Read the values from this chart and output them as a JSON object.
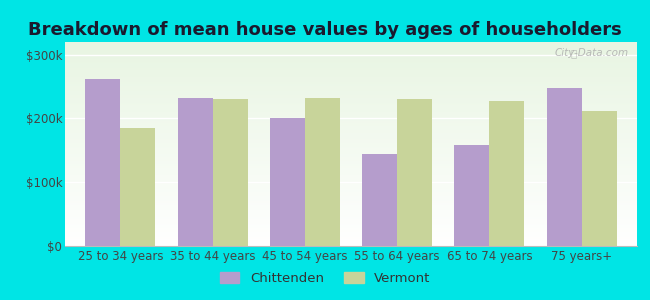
{
  "title": "Breakdown of mean house values by ages of householders",
  "categories": [
    "25 to 34 years",
    "35 to 44 years",
    "45 to 54 years",
    "55 to 64 years",
    "65 to 74 years",
    "75 years+"
  ],
  "chittenden": [
    262000,
    232000,
    200000,
    145000,
    158000,
    248000
  ],
  "vermont": [
    185000,
    230000,
    232000,
    230000,
    228000,
    212000
  ],
  "chittenden_color": "#b59dcc",
  "vermont_color": "#c8d49a",
  "background_color": "#00e5e5",
  "plot_bg_top": "#e8f5e2",
  "plot_bg_bottom": "#f5fff5",
  "yticks": [
    0,
    100000,
    200000,
    300000
  ],
  "ytick_labels": [
    "$0",
    "$100k",
    "$200k",
    "$300k"
  ],
  "ylim": [
    0,
    320000
  ],
  "bar_width": 0.38,
  "legend_labels": [
    "Chittenden",
    "Vermont"
  ],
  "title_fontsize": 13,
  "tick_fontsize": 8.5,
  "legend_fontsize": 9.5
}
